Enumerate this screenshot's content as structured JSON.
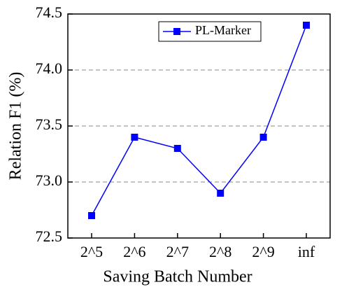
{
  "chart_data": {
    "type": "line",
    "xlabel": "Saving Batch Number",
    "ylabel": "Relation F1 (%)",
    "categories": [
      "2^5",
      "2^6",
      "2^7",
      "2^8",
      "2^9",
      "inf"
    ],
    "series": [
      {
        "name": "PL-Marker",
        "color": "#0000ff",
        "values": [
          72.7,
          73.4,
          73.3,
          72.9,
          73.4,
          74.4
        ]
      }
    ],
    "ylim": [
      72.5,
      74.5
    ],
    "yticks": [
      72.5,
      {
        "value": 73.0,
        "label": "73.0"
      },
      73.5,
      {
        "value": 74.0,
        "label": "74.0"
      },
      74.5
    ],
    "grid": true,
    "legend": "top"
  }
}
